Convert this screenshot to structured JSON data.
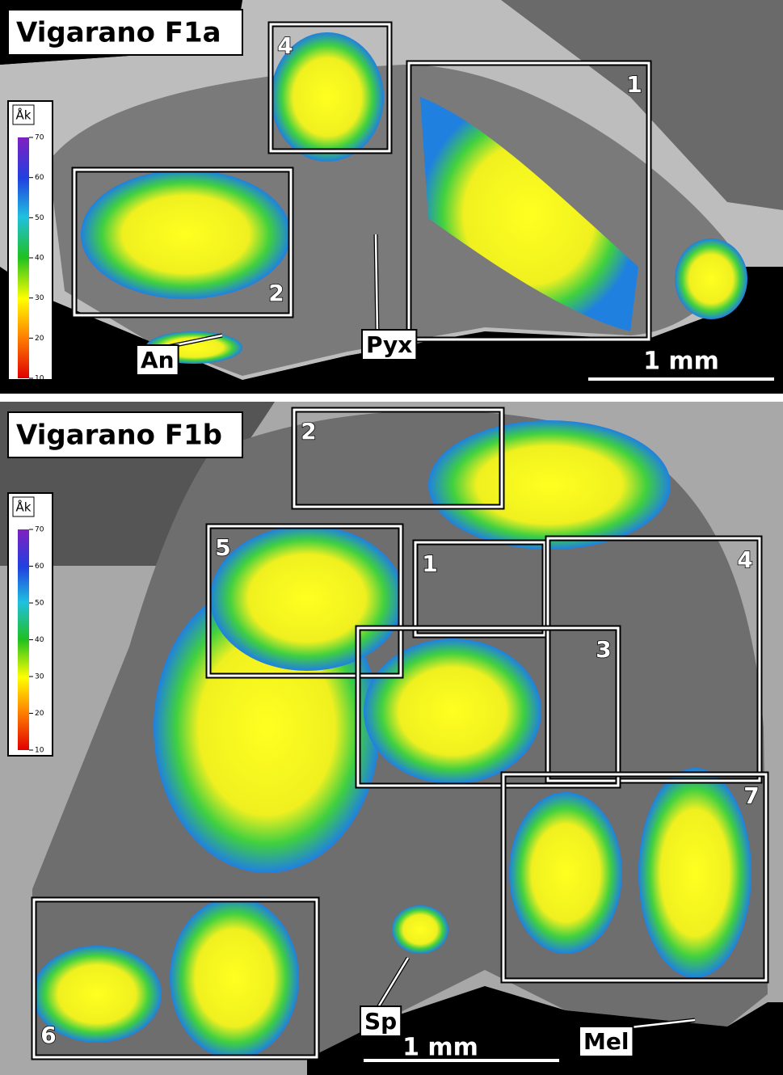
{
  "panels": [
    {
      "title": "Vigarano F1a",
      "legend": {
        "label": "Åk",
        "ticks": [
          10,
          20,
          30,
          40,
          50,
          60,
          70
        ]
      },
      "boxes": [
        "4",
        "1",
        "2"
      ],
      "labels": [
        "An",
        "Pyx"
      ],
      "scale_bar": "1 mm"
    },
    {
      "title": "Vigarano F1b",
      "legend": {
        "label": "Åk",
        "ticks": [
          10,
          20,
          30,
          40,
          50,
          60,
          70
        ]
      },
      "boxes": [
        "2",
        "5",
        "1",
        "4",
        "3",
        "7",
        "6"
      ],
      "labels": [
        "Sp",
        "Mel"
      ],
      "scale_bar": "1 mm"
    }
  ]
}
